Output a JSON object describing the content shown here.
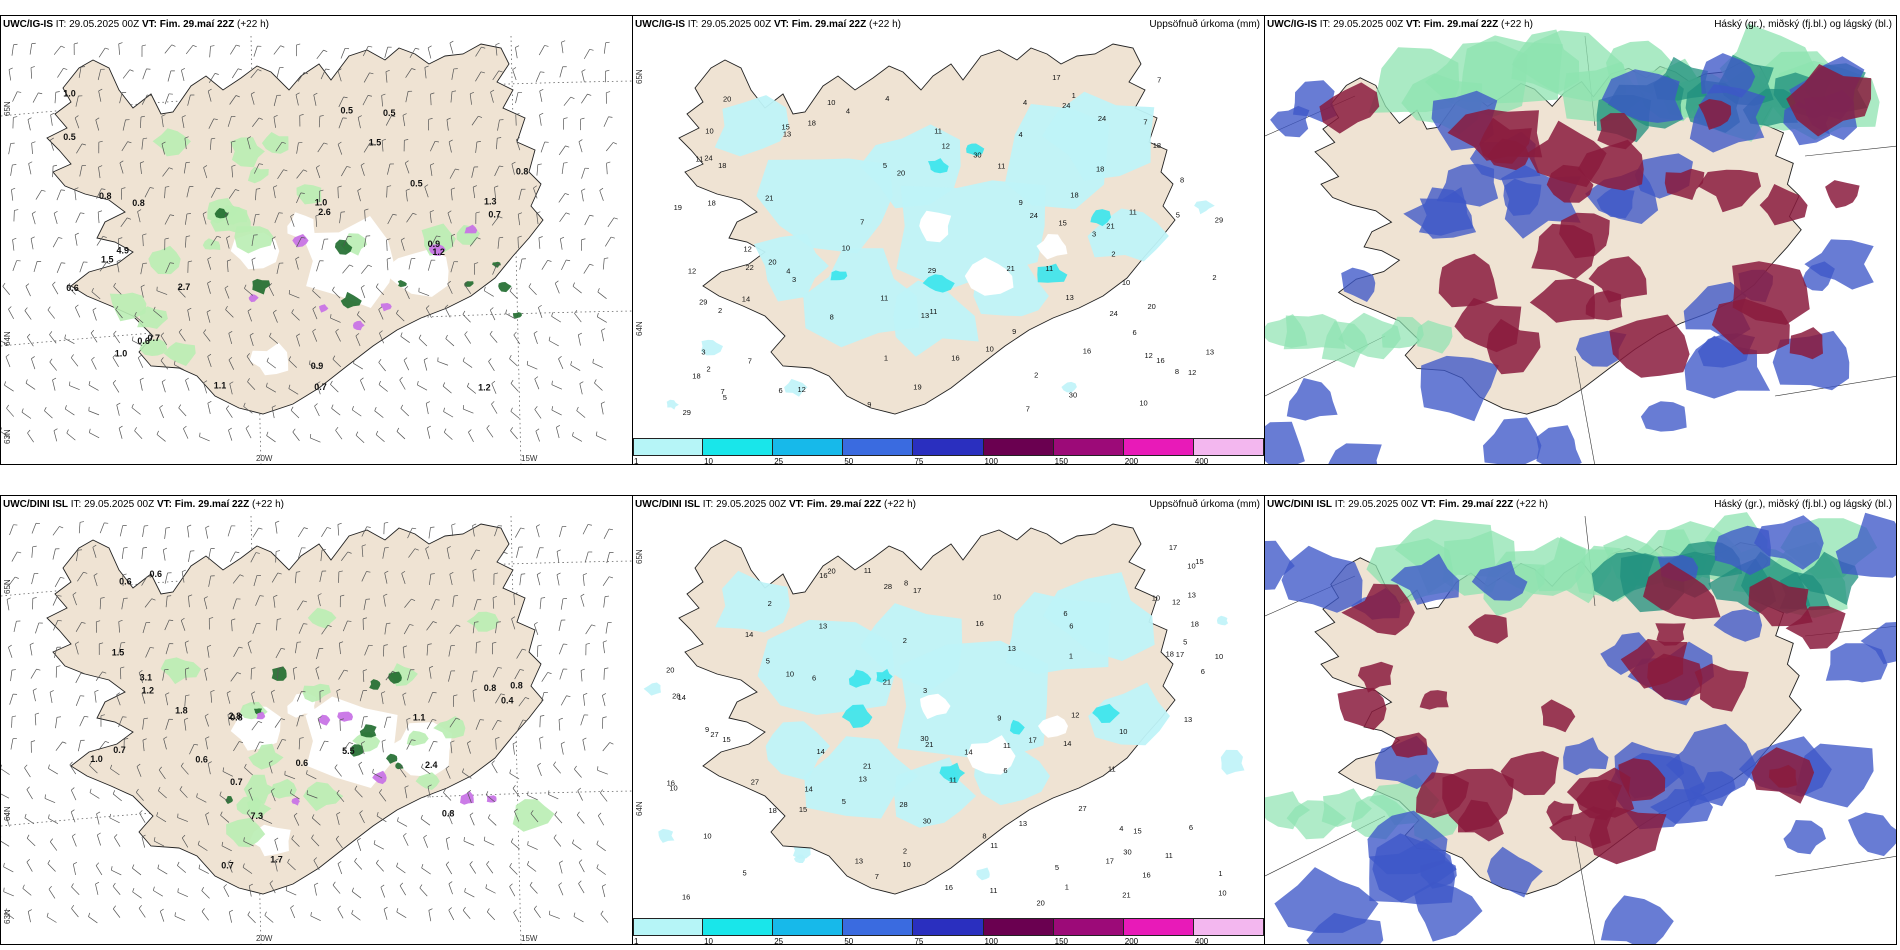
{
  "panels": [
    {
      "id": "p1",
      "kind": "wind",
      "model": "UWC/IG-IS",
      "it": "IT: 29.05.2025 00Z",
      "vt_label": "VT:",
      "vt": "Fim. 29.maí 22Z",
      "lead": "(+22 h)",
      "right": "",
      "lat_labels": [
        "65N",
        "64N",
        "63N"
      ],
      "lon_labels": [
        "20W",
        "15W"
      ],
      "values": [
        "0.7",
        "0.5",
        "0.5",
        "1.5",
        "0.5",
        "0.9",
        "0.8",
        "2.7",
        "0.8",
        "1.0",
        "1.2",
        "1.2",
        "4.9",
        "0.6",
        "0.7",
        "1.3",
        "1.5",
        "1.0",
        "0.9",
        "0.6",
        "1.1",
        "0.7",
        "2.6",
        "0.5",
        "1.0",
        "0.8"
      ]
    },
    {
      "id": "p2",
      "kind": "precip",
      "model": "UWC/IG-IS",
      "it": "IT: 29.05.2025 00Z",
      "vt_label": "VT:",
      "vt": "Fim. 29.maí 22Z",
      "lead": "(+22 h)",
      "right": "Uppsöfnuð úrkoma (mm)",
      "lat_labels": [
        "65N",
        "64N"
      ],
      "values": [
        "1",
        "2",
        "2",
        "4",
        "5",
        "7",
        "9",
        "11",
        "13",
        "17",
        "19",
        "24",
        "20",
        "21",
        "18",
        "12",
        "22",
        "29",
        "30",
        "21",
        "16",
        "14",
        "15",
        "8",
        "6",
        "3",
        "10",
        "12",
        "5",
        "4"
      ]
    },
    {
      "id": "p3",
      "kind": "cloud",
      "model": "UWC/IG-IS",
      "it": "IT: 29.05.2025 00Z",
      "vt_label": "VT:",
      "vt": "Fim. 29.maí 22Z",
      "lead": "(+22 h)",
      "right": "Háský (gr.), miðský (fj.bl.) og lágský (bl.)"
    },
    {
      "id": "p4",
      "kind": "wind",
      "model": "UWC/DINI ISL",
      "it": "IT: 29.05.2025 00Z",
      "vt_label": "VT:",
      "vt": "Fim. 29.maí 22Z",
      "lead": "(+22 h)",
      "right": "",
      "lat_labels": [
        "65N",
        "64N",
        "63N"
      ],
      "lon_labels": [
        "20W",
        "15W"
      ],
      "values": [
        "0.8",
        "0.6",
        "1.8",
        "0.8",
        "0.7",
        "1.0",
        "1.2",
        "5.5",
        "3.1",
        "1.1",
        "0.7",
        "0.4",
        "0.6",
        "0.8",
        "1.5",
        "2.4",
        "0.7",
        "7.3",
        "0.6",
        "0.8",
        "1.7",
        "0.6",
        "2.8"
      ]
    },
    {
      "id": "p5",
      "kind": "precip",
      "model": "UWC/DINI ISL",
      "it": "IT: 29.05.2025 00Z",
      "vt_label": "VT:",
      "vt": "Fim. 29.maí 22Z",
      "lead": "(+22 h)",
      "right": "Uppsöfnuð úrkoma (mm)",
      "lat_labels": [
        "65N",
        "64N"
      ],
      "values": [
        "1",
        "2",
        "3",
        "4",
        "5",
        "6",
        "7",
        "8",
        "9",
        "10",
        "11",
        "12",
        "13",
        "14",
        "15",
        "16",
        "17",
        "18",
        "20",
        "21",
        "22",
        "27",
        "28",
        "30",
        "10",
        "11",
        "13",
        "14",
        "15",
        "16"
      ]
    },
    {
      "id": "p6",
      "kind": "cloud",
      "model": "UWC/DINI ISL",
      "it": "IT: 29.05.2025 00Z",
      "vt_label": "VT:",
      "vt": "Fim. 29.maí 22Z",
      "lead": "(+22 h)",
      "right": "Háský (gr.), miðský (fj.bl.) og lágský (bl.)"
    }
  ],
  "colorbar": {
    "ticks": [
      "1",
      "10",
      "25",
      "50",
      "75",
      "100",
      "150",
      "200",
      "400"
    ],
    "colors": [
      "#b6f5f7",
      "#19e6ea",
      "#17b9ea",
      "#3a6be0",
      "#2a2fbf",
      "#6a0050",
      "#9c0a78",
      "#e81ab8",
      "#f3b7ef"
    ]
  },
  "colors": {
    "land": "#efe3d3",
    "coast": "#222222",
    "precip": "#bff3f8",
    "precip_strong": "#39e4ec",
    "wind_green_light": "#b9edb2",
    "wind_green_dark": "#1e6a2c",
    "wind_purple": "#c874e6",
    "cloud_high": "#8a1b3d",
    "cloud_mid": "#3e57c8",
    "cloud_low_light": "#8de3b0",
    "cloud_low_dark": "#1f8f7d"
  }
}
